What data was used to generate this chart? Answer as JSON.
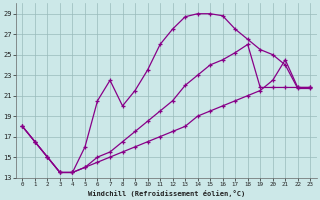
{
  "xlabel": "Windchill (Refroidissement éolien,°C)",
  "bg_color": "#cce8e8",
  "line_color": "#880088",
  "grid_color": "#99bbbb",
  "xlim": [
    -0.5,
    23.5
  ],
  "ylim": [
    13,
    30
  ],
  "yticks": [
    13,
    15,
    17,
    19,
    21,
    23,
    25,
    27,
    29
  ],
  "xticks": [
    0,
    1,
    2,
    3,
    4,
    5,
    6,
    7,
    8,
    9,
    10,
    11,
    12,
    13,
    14,
    15,
    16,
    17,
    18,
    19,
    20,
    21,
    22,
    23
  ],
  "c1_x": [
    0,
    1,
    2,
    3,
    4,
    5,
    6,
    7,
    8,
    9,
    10,
    11,
    12,
    13,
    14,
    15,
    16,
    17,
    18,
    19,
    20,
    21,
    22,
    23
  ],
  "c1_y": [
    18.0,
    16.5,
    15.0,
    13.5,
    13.5,
    16.0,
    20.5,
    22.5,
    20.0,
    21.5,
    23.5,
    26.0,
    27.5,
    28.7,
    29.0,
    29.0,
    28.8,
    27.5,
    26.5,
    25.5,
    25.0,
    24.0,
    21.7,
    21.7
  ],
  "c2_x": [
    0,
    1,
    2,
    3,
    4,
    5,
    6,
    7,
    8,
    9,
    10,
    11,
    12,
    13,
    14,
    15,
    16,
    17,
    18,
    19,
    20,
    21,
    22,
    23
  ],
  "c2_y": [
    18.0,
    16.5,
    15.0,
    13.5,
    13.5,
    14.0,
    15.0,
    15.5,
    16.5,
    17.5,
    18.5,
    19.5,
    20.5,
    22.0,
    23.0,
    24.0,
    24.5,
    25.2,
    26.0,
    21.8,
    21.8,
    21.8,
    21.8,
    21.8
  ],
  "c3_x": [
    0,
    1,
    2,
    3,
    4,
    5,
    6,
    7,
    8,
    9,
    10,
    11,
    12,
    13,
    14,
    15,
    16,
    17,
    18,
    19,
    20,
    21,
    22,
    23
  ],
  "c3_y": [
    18.0,
    16.5,
    15.0,
    13.5,
    13.5,
    14.0,
    14.5,
    15.0,
    15.5,
    16.0,
    16.5,
    17.0,
    17.5,
    18.0,
    19.0,
    19.5,
    20.0,
    20.5,
    21.0,
    21.5,
    22.5,
    24.5,
    21.8,
    21.8
  ]
}
